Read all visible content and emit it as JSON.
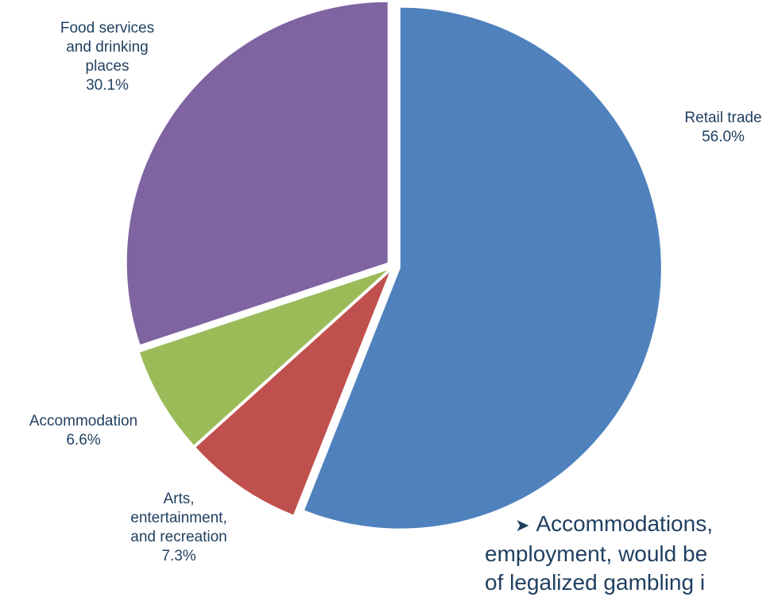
{
  "chart_data": {
    "type": "pie",
    "title": "",
    "slices": [
      {
        "label_lines": [
          "Retail trade"
        ],
        "percent_text": "56.0%",
        "value": 56.0,
        "color": "#4f81bd"
      },
      {
        "label_lines": [
          "Arts,",
          "entertainment,",
          "and recreation"
        ],
        "percent_text": "7.3%",
        "value": 7.3,
        "color": "#c0504d"
      },
      {
        "label_lines": [
          "Accommodation"
        ],
        "percent_text": "6.6%",
        "value": 6.6,
        "color": "#9bbb59"
      },
      {
        "label_lines": [
          "Food services",
          "and drinking",
          "places"
        ],
        "percent_text": "30.1%",
        "value": 30.1,
        "color": "#8064a2"
      }
    ],
    "start_angle_deg": 0,
    "direction": "clockwise",
    "exploded": [
      true,
      true,
      true,
      true
    ]
  },
  "note": {
    "line1": "Accommodations,",
    "line2": "employment, would be",
    "line3": "of legalized gambling i"
  }
}
